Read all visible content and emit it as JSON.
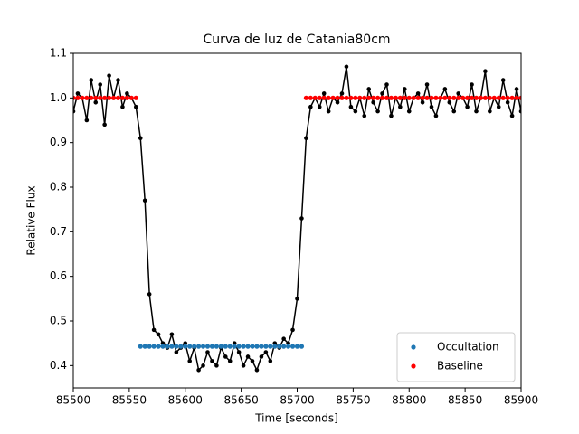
{
  "chart_data": {
    "type": "line",
    "title": "Curva de luz de Catania80cm",
    "x_label": "Time [seconds]",
    "y_label": "Relative Flux",
    "xlim": [
      85500,
      85900
    ],
    "ylim": [
      0.35,
      1.1
    ],
    "xticks": [
      85500,
      85550,
      85600,
      85650,
      85700,
      85750,
      85800,
      85850,
      85900
    ],
    "yticks": [
      0.4,
      0.5,
      0.6,
      0.7,
      0.8,
      0.9,
      {
        "value": 1,
        "label": "1.0"
      },
      1.1
    ],
    "legend": "lower right",
    "series": [
      {
        "color": "#000000",
        "style": "line-marker",
        "x": [
          85500,
          85504,
          85508,
          85512,
          85516,
          85520,
          85524,
          85528,
          85532,
          85536,
          85540,
          85544,
          85548,
          85552,
          85556,
          85560,
          85564,
          85568,
          85572,
          85576,
          85580,
          85584,
          85588,
          85592,
          85596,
          85600,
          85604,
          85608,
          85612,
          85616,
          85620,
          85624,
          85628,
          85632,
          85636,
          85640,
          85644,
          85648,
          85652,
          85656,
          85660,
          85664,
          85668,
          85672,
          85676,
          85680,
          85684,
          85688,
          85692,
          85696,
          85700,
          85704,
          85708,
          85712,
          85716,
          85720,
          85724,
          85728,
          85732,
          85736,
          85740,
          85744,
          85748,
          85752,
          85756,
          85760,
          85764,
          85768,
          85772,
          85776,
          85780,
          85784,
          85788,
          85792,
          85796,
          85800,
          85804,
          85808,
          85812,
          85816,
          85820,
          85824,
          85828,
          85832,
          85836,
          85840,
          85844,
          85848,
          85852,
          85856,
          85860,
          85864,
          85868,
          85872,
          85876,
          85880,
          85884,
          85888,
          85892,
          85896,
          85900
        ],
        "values": [
          0.97,
          1.01,
          1.0,
          0.95,
          1.04,
          0.99,
          1.03,
          0.94,
          1.05,
          1.0,
          1.04,
          0.98,
          1.01,
          1.0,
          0.98,
          0.91,
          0.77,
          0.56,
          0.48,
          0.47,
          0.45,
          0.44,
          0.47,
          0.43,
          0.44,
          0.45,
          0.41,
          0.44,
          0.39,
          0.4,
          0.43,
          0.41,
          0.4,
          0.44,
          0.42,
          0.41,
          0.45,
          0.43,
          0.4,
          0.42,
          0.41,
          0.39,
          0.42,
          0.43,
          0.41,
          0.45,
          0.44,
          0.46,
          0.45,
          0.48,
          0.55,
          0.73,
          0.91,
          0.98,
          1.0,
          0.98,
          1.01,
          0.97,
          1.0,
          0.99,
          1.01,
          1.07,
          0.98,
          0.97,
          1.0,
          0.96,
          1.02,
          0.99,
          0.97,
          1.01,
          1.03,
          0.96,
          1.0,
          0.98,
          1.02,
          0.97,
          1.0,
          1.01,
          0.99,
          1.03,
          0.98,
          0.96,
          1.0,
          1.02,
          0.99,
          0.97,
          1.01,
          1.0,
          0.98,
          1.03,
          0.97,
          1.0,
          1.06,
          0.97,
          1.0,
          0.98,
          1.04,
          0.99,
          0.96,
          1.02,
          0.97
        ]
      },
      {
        "name": "Occultation",
        "color": "#1f77b4",
        "style": "marker",
        "x": [
          85560,
          85564,
          85568,
          85572,
          85576,
          85580,
          85584,
          85588,
          85592,
          85596,
          85600,
          85604,
          85608,
          85612,
          85616,
          85620,
          85624,
          85628,
          85632,
          85636,
          85640,
          85644,
          85648,
          85652,
          85656,
          85660,
          85664,
          85668,
          85672,
          85676,
          85680,
          85684,
          85688,
          85692,
          85696,
          85700,
          85704
        ],
        "values": [
          0.443,
          0.443,
          0.443,
          0.443,
          0.443,
          0.443,
          0.443,
          0.443,
          0.443,
          0.443,
          0.443,
          0.443,
          0.443,
          0.443,
          0.443,
          0.443,
          0.443,
          0.443,
          0.443,
          0.443,
          0.443,
          0.443,
          0.443,
          0.443,
          0.443,
          0.443,
          0.443,
          0.443,
          0.443,
          0.443,
          0.443,
          0.443,
          0.443,
          0.443,
          0.443,
          0.443,
          0.443
        ]
      },
      {
        "name": "Baseline",
        "color": "#ff0000",
        "style": "marker",
        "x": [
          85500,
          85504,
          85508,
          85512,
          85516,
          85520,
          85524,
          85528,
          85532,
          85536,
          85540,
          85544,
          85548,
          85552,
          85556,
          85708,
          85712,
          85716,
          85720,
          85724,
          85728,
          85732,
          85736,
          85740,
          85744,
          85748,
          85752,
          85756,
          85760,
          85764,
          85768,
          85772,
          85776,
          85780,
          85784,
          85788,
          85792,
          85796,
          85800,
          85804,
          85808,
          85812,
          85816,
          85820,
          85824,
          85828,
          85832,
          85836,
          85840,
          85844,
          85848,
          85852,
          85856,
          85860,
          85864,
          85868,
          85872,
          85876,
          85880,
          85884,
          85888,
          85892,
          85896,
          85900
        ],
        "values": [
          1,
          1,
          1,
          1,
          1,
          1,
          1,
          1,
          1,
          1,
          1,
          1,
          1,
          1,
          1,
          1,
          1,
          1,
          1,
          1,
          1,
          1,
          1,
          1,
          1,
          1,
          1,
          1,
          1,
          1,
          1,
          1,
          1,
          1,
          1,
          1,
          1,
          1,
          1,
          1,
          1,
          1,
          1,
          1,
          1,
          1,
          1,
          1,
          1,
          1,
          1,
          1,
          1,
          1,
          1,
          1,
          1,
          1,
          1,
          1,
          1,
          1,
          1,
          1
        ]
      }
    ]
  }
}
